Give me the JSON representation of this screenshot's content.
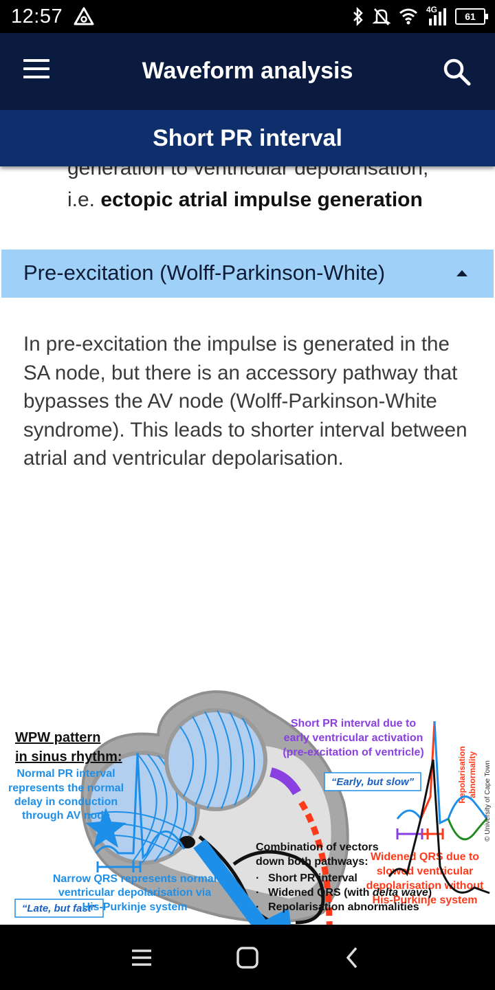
{
  "status_bar": {
    "time": "12:57",
    "battery_level": "61",
    "network_label": "4G",
    "icons": [
      "alert-triangle-icon",
      "bluetooth-icon",
      "mute-bell-icon",
      "wifi-icon",
      "signal-icon",
      "battery-icon"
    ]
  },
  "app_bar": {
    "title": "Waveform analysis",
    "menu_icon": "hamburger-menu-icon",
    "search_icon": "search-icon"
  },
  "sub_bar": {
    "title": "Short PR interval"
  },
  "content": {
    "cut_line1": "generation to ventricular depolarisation,",
    "cut_line2_prefix": "i.e. ",
    "cut_line2_bold": "ectopic atrial impulse generation",
    "accordion_title": "Pre-excitation (Wolff-Parkinson-White)",
    "accordion_state": "expanded",
    "paragraph": "In pre-excitation the impulse is generated in the SA node, but there is an accessory pathway that bypasses the AV node (Wolff-Parkinson-White syndrome). This leads to shorter interval between atrial and ventricular depolarisation."
  },
  "figure": {
    "title_line1": "WPW pattern",
    "title_line2": "in sinus rhythm:",
    "short_pr_line1": "Short PR interval due to",
    "short_pr_line2": "early ventricular activation",
    "short_pr_line3": "(pre-excitation of ventricle)",
    "early_slow": "“Early, but slow”",
    "repol_line1": "Repolarisation",
    "repol_line2": "abnormality",
    "widened_line1": "Widened QRS due to",
    "widened_line2": "slowed ventricular",
    "widened_line3": "depolarisation without",
    "widened_line4": "His-Purkinje system",
    "late_fast": "“Late, but fast”",
    "normal_pr_line1": "Normal PR interval",
    "normal_pr_line2": "represents the normal",
    "normal_pr_line3": "delay in conduction",
    "normal_pr_line4": "through AV node",
    "narrow_line1": "Narrow QRS represents normal",
    "narrow_line2": "ventricular depolarisation via",
    "narrow_line3": "His-Purkinje system",
    "combo_line1": "Combination of vectors",
    "combo_line2": "down both pathways:",
    "bullet1": "Short PR interval",
    "bullet2_prefix": "Widened QRS (with ",
    "bullet2_italic": "delta wave",
    "bullet2_suffix": ")",
    "bullet3": "Repolarisation abnormalities",
    "copyright": "© University of Cape Town",
    "colors": {
      "blue": "#1e8fe8",
      "purple": "#8a3fe0",
      "red": "#ff3a1a",
      "green": "#1f8a1f",
      "dark_blue": "#1a5fc0"
    }
  },
  "nav_bar": {
    "icons": [
      "recent-apps-icon",
      "home-icon",
      "back-icon"
    ]
  }
}
